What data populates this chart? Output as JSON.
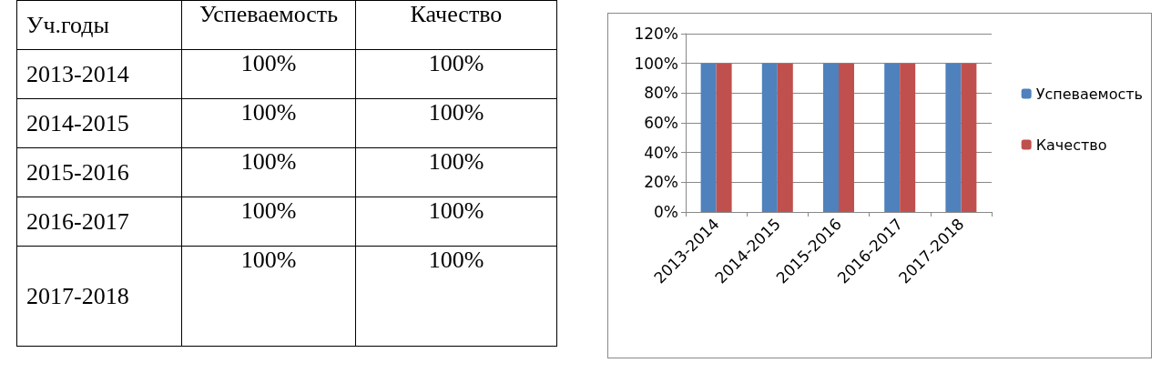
{
  "chart_data": [
    {
      "type": "other",
      "annotations": [
        "Уч.годы",
        "Успеваемость",
        "Качество",
        "2013-2014",
        "100%",
        "100%",
        "2014-2015",
        "100%",
        "100%",
        "2015-2016",
        "100%",
        "100%",
        "2016-2017",
        "100%",
        "100%",
        "2017-2018",
        "100%",
        "100%"
      ]
    },
    {
      "type": "bar",
      "categories": [
        "2013-2014",
        "2014-2015",
        "2015-2016",
        "2016-2017",
        "2017-2018"
      ],
      "series": [
        {
          "name": "Успеваемость",
          "color": "#4f81bd",
          "values": [
            100,
            100,
            100,
            100,
            100
          ]
        },
        {
          "name": "Качество",
          "color": "#c0504d",
          "values": [
            100,
            100,
            100,
            100,
            100
          ]
        }
      ],
      "ylim": [
        0,
        120
      ],
      "yticks": [
        {
          "value": 0,
          "label": "0%"
        },
        {
          "value": 20,
          "label": "20%"
        },
        {
          "value": 40,
          "label": "40%"
        },
        {
          "value": 60,
          "label": "60%"
        },
        {
          "value": 80,
          "label": "80%"
        },
        {
          "value": 100,
          "label": "100%"
        },
        {
          "value": 120,
          "label": "120%"
        }
      ],
      "grid": "y",
      "legend": "right"
    }
  ]
}
